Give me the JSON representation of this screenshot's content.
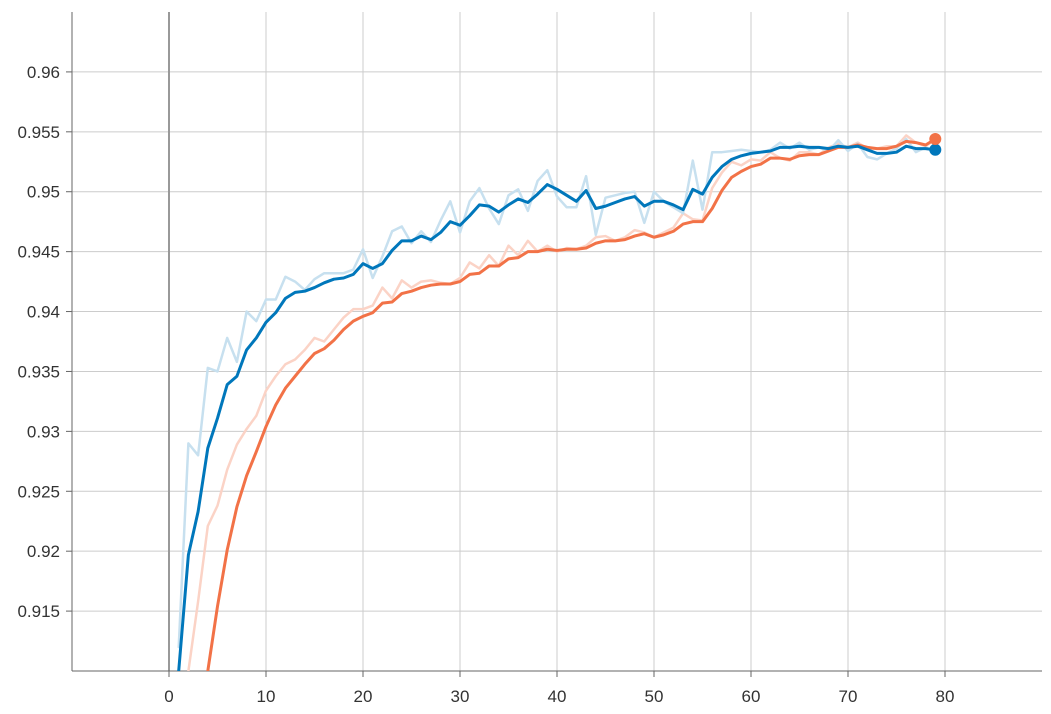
{
  "chart_data": {
    "type": "line",
    "title": "",
    "xlabel": "",
    "ylabel": "",
    "xlim": [
      -10,
      90
    ],
    "ylim": [
      0.91,
      0.965
    ],
    "x_ticks": [
      0,
      10,
      20,
      30,
      40,
      50,
      60,
      70,
      80
    ],
    "y_ticks": [
      0.915,
      0.92,
      0.925,
      0.93,
      0.935,
      0.94,
      0.945,
      0.95,
      0.955,
      0.96
    ],
    "grid": true,
    "legend": "none",
    "series": [
      {
        "color": "#0077bb",
        "raw_color": "#c7e0ef",
        "end_marker": true,
        "x": [
          1,
          2,
          3,
          4,
          5,
          6,
          7,
          8,
          9,
          10,
          11,
          12,
          13,
          14,
          15,
          16,
          17,
          18,
          19,
          20,
          21,
          22,
          23,
          24,
          25,
          26,
          27,
          28,
          29,
          30,
          31,
          32,
          33,
          34,
          35,
          36,
          37,
          38,
          39,
          40,
          41,
          42,
          43,
          44,
          45,
          46,
          47,
          48,
          49,
          50,
          51,
          52,
          53,
          54,
          55,
          56,
          57,
          58,
          59,
          60,
          61,
          62,
          63,
          64,
          65,
          66,
          67,
          68,
          69,
          70,
          71,
          72,
          73,
          74,
          75,
          76,
          77,
          78,
          79
        ],
        "values": [
          0.91,
          0.9197,
          0.9233,
          0.9286,
          0.9311,
          0.9339,
          0.9346,
          0.9368,
          0.9378,
          0.9391,
          0.9399,
          0.9411,
          0.9416,
          0.9417,
          0.942,
          0.9424,
          0.9427,
          0.9428,
          0.9431,
          0.944,
          0.9436,
          0.944,
          0.9451,
          0.9459,
          0.9459,
          0.9463,
          0.946,
          0.9466,
          0.9475,
          0.9472,
          0.948,
          0.9489,
          0.9488,
          0.9483,
          0.9489,
          0.9494,
          0.9491,
          0.9498,
          0.9506,
          0.9502,
          0.9497,
          0.9492,
          0.9501,
          0.9486,
          0.9488,
          0.9491,
          0.9494,
          0.9496,
          0.9488,
          0.9492,
          0.9492,
          0.9489,
          0.9485,
          0.9502,
          0.9498,
          0.9512,
          0.9521,
          0.9527,
          0.953,
          0.9532,
          0.9533,
          0.9534,
          0.9537,
          0.9537,
          0.9538,
          0.9537,
          0.9537,
          0.9536,
          0.9538,
          0.9537,
          0.9538,
          0.9535,
          0.9532,
          0.9532,
          0.9533,
          0.9538,
          0.9536,
          0.9536,
          0.9535
        ],
        "raw_values": [
          0.912,
          0.929,
          0.928,
          0.9353,
          0.935,
          0.9378,
          0.9358,
          0.94,
          0.9392,
          0.941,
          0.941,
          0.9429,
          0.9425,
          0.9418,
          0.9427,
          0.9432,
          0.9432,
          0.9432,
          0.9435,
          0.9452,
          0.9428,
          0.9446,
          0.9467,
          0.9471,
          0.9457,
          0.9467,
          0.9458,
          0.9476,
          0.9492,
          0.9466,
          0.9492,
          0.9503,
          0.9486,
          0.9473,
          0.9497,
          0.9502,
          0.9484,
          0.9509,
          0.9518,
          0.9496,
          0.9487,
          0.9487,
          0.9513,
          0.9464,
          0.9495,
          0.9497,
          0.9499,
          0.95,
          0.9474,
          0.95,
          0.9492,
          0.9487,
          0.9482,
          0.9526,
          0.9485,
          0.9533,
          0.9533,
          0.9534,
          0.9535,
          0.9534,
          0.9533,
          0.9535,
          0.9541,
          0.9536,
          0.9541,
          0.9535,
          0.9537,
          0.9534,
          0.9543,
          0.9534,
          0.954,
          0.9529,
          0.9527,
          0.9532,
          0.9536,
          0.9544,
          0.9533,
          0.9537,
          0.9533
        ]
      },
      {
        "color": "#f27247",
        "raw_color": "#fbd3c6",
        "end_marker": true,
        "x": [
          4,
          5,
          6,
          7,
          8,
          9,
          10,
          11,
          12,
          13,
          14,
          15,
          16,
          17,
          18,
          19,
          20,
          21,
          22,
          23,
          24,
          25,
          26,
          27,
          28,
          29,
          30,
          31,
          32,
          33,
          34,
          35,
          36,
          37,
          38,
          39,
          40,
          41,
          42,
          43,
          44,
          45,
          46,
          47,
          48,
          49,
          50,
          51,
          52,
          53,
          54,
          55,
          56,
          57,
          58,
          59,
          60,
          61,
          62,
          63,
          64,
          65,
          66,
          67,
          68,
          69,
          70,
          71,
          72,
          73,
          74,
          75,
          76,
          77,
          78,
          79
        ],
        "values": [
          0.91,
          0.9154,
          0.9201,
          0.9237,
          0.9263,
          0.9283,
          0.9304,
          0.9322,
          0.9336,
          0.9346,
          0.9356,
          0.9365,
          0.9369,
          0.9376,
          0.9385,
          0.9392,
          0.9396,
          0.9399,
          0.9407,
          0.9408,
          0.9415,
          0.9417,
          0.942,
          0.9422,
          0.9423,
          0.9423,
          0.9425,
          0.9431,
          0.9432,
          0.9438,
          0.9438,
          0.9444,
          0.9445,
          0.945,
          0.945,
          0.9452,
          0.9451,
          0.9452,
          0.9452,
          0.9453,
          0.9457,
          0.9459,
          0.9459,
          0.946,
          0.9463,
          0.9465,
          0.9462,
          0.9464,
          0.9467,
          0.9473,
          0.9475,
          0.9475,
          0.9486,
          0.9501,
          0.9512,
          0.9517,
          0.9521,
          0.9523,
          0.9528,
          0.9528,
          0.9527,
          0.953,
          0.9531,
          0.9531,
          0.9534,
          0.9537,
          0.9537,
          0.9539,
          0.9537,
          0.9536,
          0.9536,
          0.9538,
          0.9542,
          0.9541,
          0.9539,
          0.9544
        ]
      }
    ],
    "secondary_series": [
      {
        "color": "#fbd3c6",
        "x": [
          2,
          3,
          4,
          5,
          6,
          7,
          8,
          9,
          10,
          11,
          12,
          13,
          14,
          15,
          16,
          17,
          18,
          19,
          20,
          21,
          22,
          23,
          24,
          25,
          26,
          27,
          28,
          29,
          30,
          31,
          32,
          33,
          34,
          35,
          36,
          37,
          38,
          39,
          40,
          41,
          42,
          43,
          44,
          45,
          46,
          47,
          48,
          49,
          50,
          51,
          52,
          53,
          54,
          55,
          56,
          57,
          58,
          59,
          60,
          61,
          62,
          63,
          64,
          65,
          66,
          67,
          68,
          69,
          70,
          71,
          72,
          73,
          74,
          75,
          76,
          77,
          78,
          79
        ],
        "values": [
          0.91,
          0.9158,
          0.9221,
          0.9238,
          0.9268,
          0.9289,
          0.9302,
          0.9313,
          0.9334,
          0.9346,
          0.9356,
          0.936,
          0.9368,
          0.9378,
          0.9375,
          0.9385,
          0.9395,
          0.9402,
          0.9402,
          0.9405,
          0.942,
          0.9411,
          0.9426,
          0.942,
          0.9425,
          0.9426,
          0.9424,
          0.9423,
          0.9428,
          0.9441,
          0.9436,
          0.9447,
          0.9438,
          0.9455,
          0.9447,
          0.9459,
          0.945,
          0.9455,
          0.945,
          0.9453,
          0.9452,
          0.9455,
          0.9462,
          0.9463,
          0.9459,
          0.9462,
          0.9468,
          0.9466,
          0.9462,
          0.9466,
          0.947,
          0.9482,
          0.9477,
          0.9476,
          0.9503,
          0.9516,
          0.9525,
          0.9522,
          0.9527,
          0.9526,
          0.9533,
          0.9528,
          0.9526,
          0.9533,
          0.9533,
          0.9531,
          0.9537,
          0.954,
          0.9537,
          0.9541,
          0.9536,
          0.9536,
          0.9538,
          0.9538,
          0.9547,
          0.9541,
          0.9538,
          0.9544
        ]
      }
    ]
  }
}
